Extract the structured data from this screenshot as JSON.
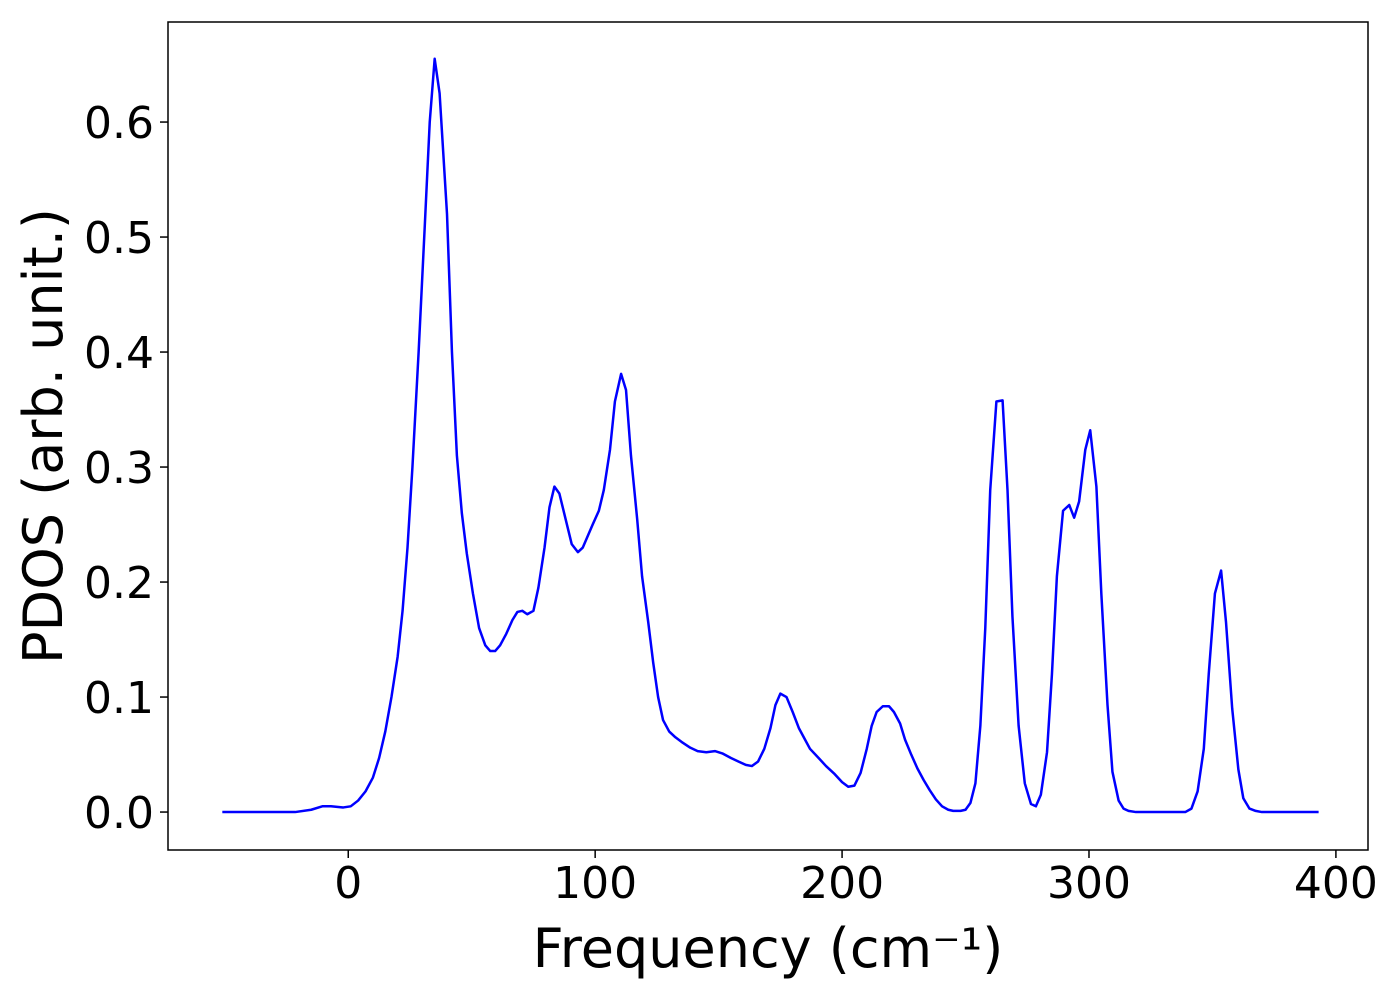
{
  "chart_data": {
    "type": "line",
    "x_label": "Frequency (cm⁻¹)",
    "y_label": "PDOS (arb. unit.)",
    "color": "#0000ff",
    "xlim": [
      -73,
      413
    ],
    "ylim": [
      -0.033,
      0.687
    ],
    "xticks": [
      0,
      100,
      200,
      300,
      400
    ],
    "yticks": [
      {
        "value": 0,
        "label": "0.0"
      },
      0.1,
      0.2,
      0.3,
      0.4,
      0.5,
      0.6
    ],
    "x": [
      -51,
      -21.5,
      -15,
      -10.5,
      -7,
      -2,
      1,
      4,
      7,
      10,
      12.5,
      15,
      17.5,
      20,
      22,
      24,
      26,
      28.5,
      31,
      33,
      35,
      37,
      40,
      42,
      44,
      46,
      48,
      50.5,
      53,
      55.5,
      57.5,
      59.5,
      61.5,
      64,
      66.5,
      68.5,
      70.5,
      72.5,
      75,
      77,
      79.5,
      81.5,
      83.5,
      85.5,
      88,
      90.5,
      93,
      95,
      97,
      99,
      101.5,
      103.5,
      106,
      108,
      110.5,
      112.5,
      114.5,
      117,
      119,
      121.5,
      123.5,
      125.5,
      127.5,
      130,
      132.5,
      135,
      138.5,
      141.5,
      145,
      148.5,
      151.5,
      155,
      158,
      161,
      163.5,
      166,
      168.5,
      171,
      173,
      175,
      177.5,
      180,
      182.5,
      185,
      187,
      190.5,
      193.5,
      197,
      200,
      202.5,
      205,
      207.5,
      210,
      212,
      214,
      216.5,
      219,
      221,
      223.5,
      225.5,
      228,
      230.5,
      233,
      235.5,
      238,
      240.5,
      243,
      245,
      248,
      250,
      252,
      254,
      256,
      258,
      260,
      262.5,
      265,
      267,
      269,
      271.5,
      274,
      276.5,
      278.5,
      280.5,
      283,
      285,
      287,
      289.5,
      292,
      294,
      296,
      298.5,
      300.5,
      303,
      305,
      307.5,
      309.5,
      312,
      314,
      316,
      319,
      339,
      341.5,
      344,
      346.5,
      348.5,
      351,
      353.5,
      355.5,
      358,
      360.5,
      362.5,
      365,
      367.5,
      370,
      393
    ],
    "values": [
      0,
      0,
      0.002,
      0.005,
      0.005,
      0.004,
      0.005,
      0.01,
      0.018,
      0.03,
      0.047,
      0.07,
      0.1,
      0.135,
      0.175,
      0.23,
      0.3,
      0.4,
      0.51,
      0.6,
      0.655,
      0.625,
      0.52,
      0.4,
      0.31,
      0.26,
      0.225,
      0.19,
      0.16,
      0.145,
      0.14,
      0.14,
      0.145,
      0.155,
      0.167,
      0.174,
      0.175,
      0.172,
      0.175,
      0.195,
      0.23,
      0.265,
      0.283,
      0.277,
      0.255,
      0.233,
      0.226,
      0.23,
      0.24,
      0.25,
      0.262,
      0.28,
      0.315,
      0.357,
      0.381,
      0.367,
      0.31,
      0.255,
      0.205,
      0.165,
      0.13,
      0.1,
      0.08,
      0.07,
      0.065,
      0.061,
      0.056,
      0.053,
      0.052,
      0.053,
      0.051,
      0.047,
      0.044,
      0.041,
      0.04,
      0.044,
      0.055,
      0.073,
      0.093,
      0.103,
      0.1,
      0.087,
      0.073,
      0.063,
      0.055,
      0.047,
      0.04,
      0.033,
      0.026,
      0.022,
      0.023,
      0.034,
      0.055,
      0.075,
      0.087,
      0.092,
      0.092,
      0.087,
      0.077,
      0.063,
      0.05,
      0.038,
      0.028,
      0.019,
      0.011,
      0.005,
      0.002,
      0.001,
      0.001,
      0.002,
      0.008,
      0.025,
      0.075,
      0.16,
      0.28,
      0.357,
      0.358,
      0.28,
      0.17,
      0.075,
      0.025,
      0.007,
      0.005,
      0.015,
      0.052,
      0.12,
      0.205,
      0.262,
      0.267,
      0.256,
      0.27,
      0.315,
      0.332,
      0.283,
      0.19,
      0.093,
      0.035,
      0.01,
      0.003,
      0.001,
      0,
      0,
      0.003,
      0.018,
      0.055,
      0.12,
      0.19,
      0.21,
      0.165,
      0.09,
      0.037,
      0.012,
      0.003,
      0.001,
      0,
      0
    ]
  }
}
